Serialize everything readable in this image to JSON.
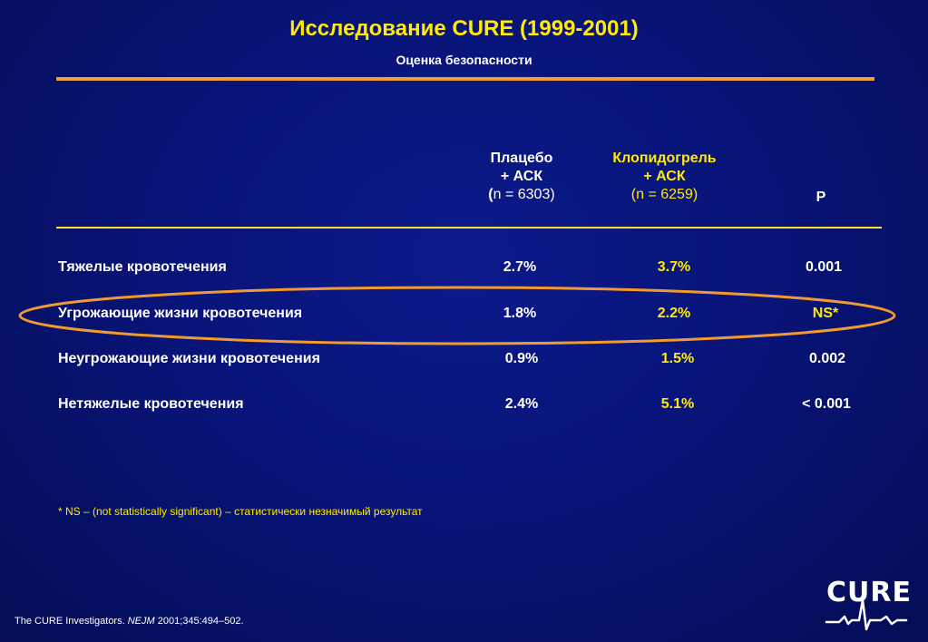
{
  "title": "Исследование CURE (1999-2001)",
  "subtitle": "Оценка безопасности",
  "columns": {
    "placebo": {
      "line1": "Плацебо",
      "line2": "+ АСК",
      "n_open": "(",
      "n_text": "n = 6303)"
    },
    "clopidogrel": {
      "line1": "Клопидогрель",
      "line2": "+ АСК",
      "n_text": "(n = 6259)"
    },
    "p": "P"
  },
  "rows": [
    {
      "label": "Тяжелые кровотечения",
      "placebo": "2.7%",
      "clopidogrel": "3.7%",
      "p": "0.001"
    },
    {
      "label": "Угрожающие жизни кровотечения",
      "placebo": "1.8%",
      "clopidogrel": "2.2%",
      "p": "NS*"
    },
    {
      "label": "Неугрожающие жизни кровотечения",
      "placebo": "0.9%",
      "clopidogrel": "1.5%",
      "p": "0.002"
    },
    {
      "label": "Нетяжелые кровотечения",
      "placebo": "2.4%",
      "clopidogrel": "5.1%",
      "p": "< 0.001"
    }
  ],
  "footnote": "* NS – (not statistically significant) – статистически незначимый результат",
  "citation": {
    "before": "The CURE Investigators. ",
    "journal": "NEJM",
    "after": " 2001;345:494–502."
  },
  "logo": {
    "text": "CURE"
  },
  "colors": {
    "accent": "#ffea00",
    "rule": "#f0a030",
    "background": "#081478"
  }
}
